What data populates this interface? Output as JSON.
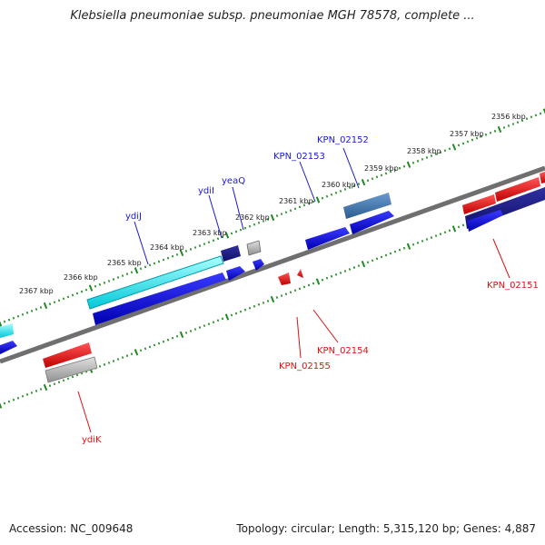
{
  "title": "Klebsiella pneumoniae subsp. pneumoniae MGH 78578, complete ...",
  "footer": {
    "accession": "Accession: NC_009648",
    "summary": "Topology: circular; Length: 5,315,120 bp; Genes: 4,887"
  },
  "scale_ticks": [
    {
      "label": "2356 kbp"
    },
    {
      "label": "2357 kbp"
    },
    {
      "label": "2358 kbp"
    },
    {
      "label": "2359 kbp"
    },
    {
      "label": "2360 kbp"
    },
    {
      "label": "2361 kbp"
    },
    {
      "label": "2362 kbp"
    },
    {
      "label": "2363 kbp"
    },
    {
      "label": "2364 kbp"
    },
    {
      "label": "2365 kbp"
    },
    {
      "label": "2366 kbp"
    },
    {
      "label": "2367 kbp"
    }
  ],
  "gene_labels": [
    {
      "name": "KPN_02152",
      "color": "#1a1acc"
    },
    {
      "name": "KPN_02153",
      "color": "#1a1acc"
    },
    {
      "name": "yeaQ",
      "color": "#1a1acc"
    },
    {
      "name": "ydiI",
      "color": "#1a1acc"
    },
    {
      "name": "ydiJ",
      "color": "#1a1acc"
    },
    {
      "name": "KPN_02151",
      "color": "#dd1111"
    },
    {
      "name": "KPN_02154",
      "color": "#dd1111"
    },
    {
      "name": "KPN_02155",
      "color": "#dd1111"
    },
    {
      "name": "ydiK",
      "color": "#dd1111"
    }
  ],
  "colors": {
    "forward_cds": "#0000ee",
    "reverse_cds": "#ee0000",
    "tick": "#1f8a1f",
    "backbone": "#777777"
  }
}
